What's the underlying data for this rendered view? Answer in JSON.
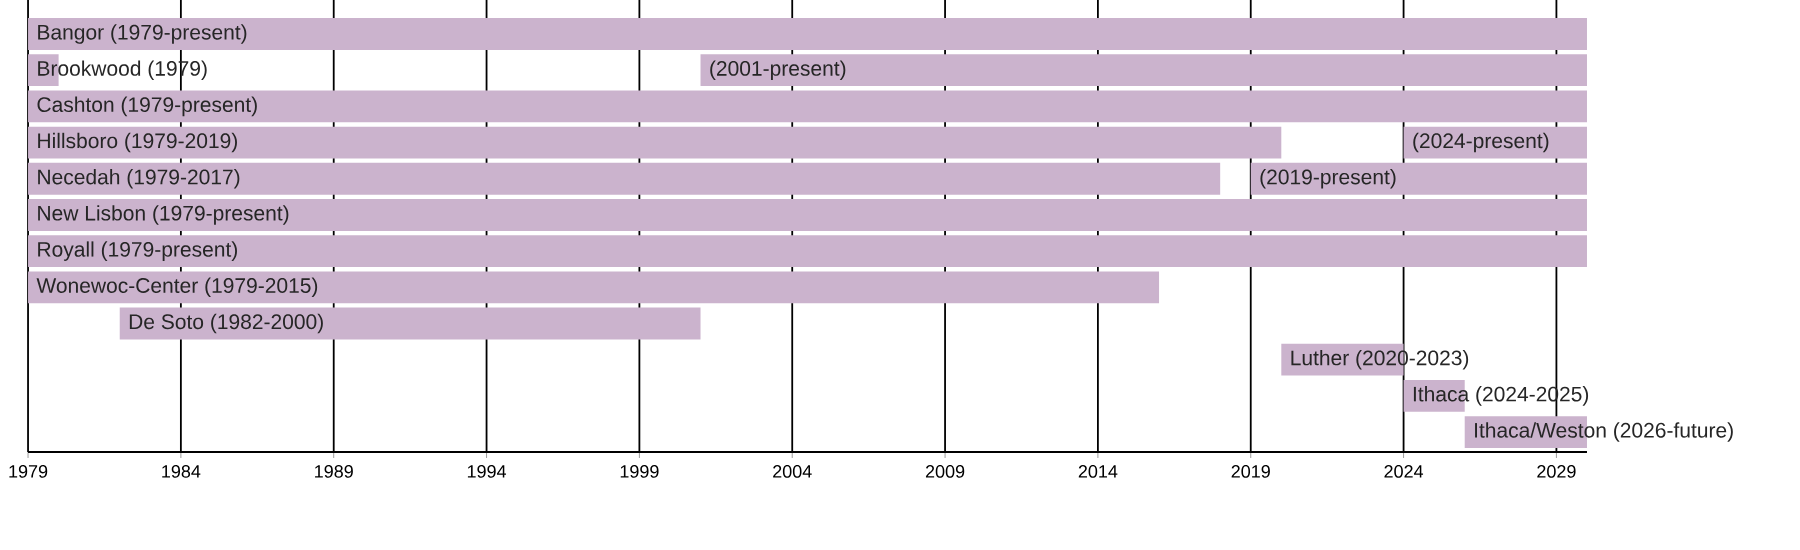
{
  "chart_data": {
    "type": "bar",
    "orientation": "horizontal",
    "categories": [
      "Bangor (1979-present)",
      "Brookwood (1979)",
      "Cashton (1979-present)",
      "Hillsboro (1979-2019)",
      "Necedah (1979-2017)",
      "New Lisbon (1979-present)",
      "Royall (1979-present)",
      "Wonewoc-Center (1979-2015)",
      "De Soto (1982-2000)",
      "Luther (2020-2023)",
      "Ithaca (2024-2025)",
      "Ithaca/Weston (2026-future)"
    ],
    "series": [
      {
        "color": "#cbb3cd",
        "base": [
          1979,
          1979,
          1979,
          1979,
          1979,
          1979,
          1979,
          1979,
          1982,
          2020,
          2024,
          2026
        ],
        "values": [
          51,
          1,
          51,
          41,
          39,
          51,
          51,
          37,
          19,
          4,
          2,
          4
        ]
      },
      {
        "color": "#cbb3cd",
        "base": [
          null,
          2001,
          null,
          2024,
          2019,
          null,
          null,
          null,
          null,
          null,
          null,
          null
        ],
        "values": [
          null,
          29,
          null,
          6,
          11,
          null,
          null,
          null,
          null,
          null,
          null,
          null
        ]
      }
    ],
    "annotations": [
      {
        "text": "(2001-present)",
        "x": 2001,
        "y": "Brookwood (1979)"
      },
      {
        "text": "(2024-present)",
        "x": 2024,
        "y": "Hillsboro (1979-2019)"
      },
      {
        "text": "(2019-present)",
        "x": 2019,
        "y": "Necedah (1979-2017)"
      }
    ],
    "xlim": [
      1979,
      2030
    ],
    "xticks": [
      1979,
      1984,
      1989,
      1994,
      1999,
      2004,
      2009,
      2014,
      2019,
      2024,
      2029
    ],
    "grid": "x",
    "tick_labels": "x"
  }
}
